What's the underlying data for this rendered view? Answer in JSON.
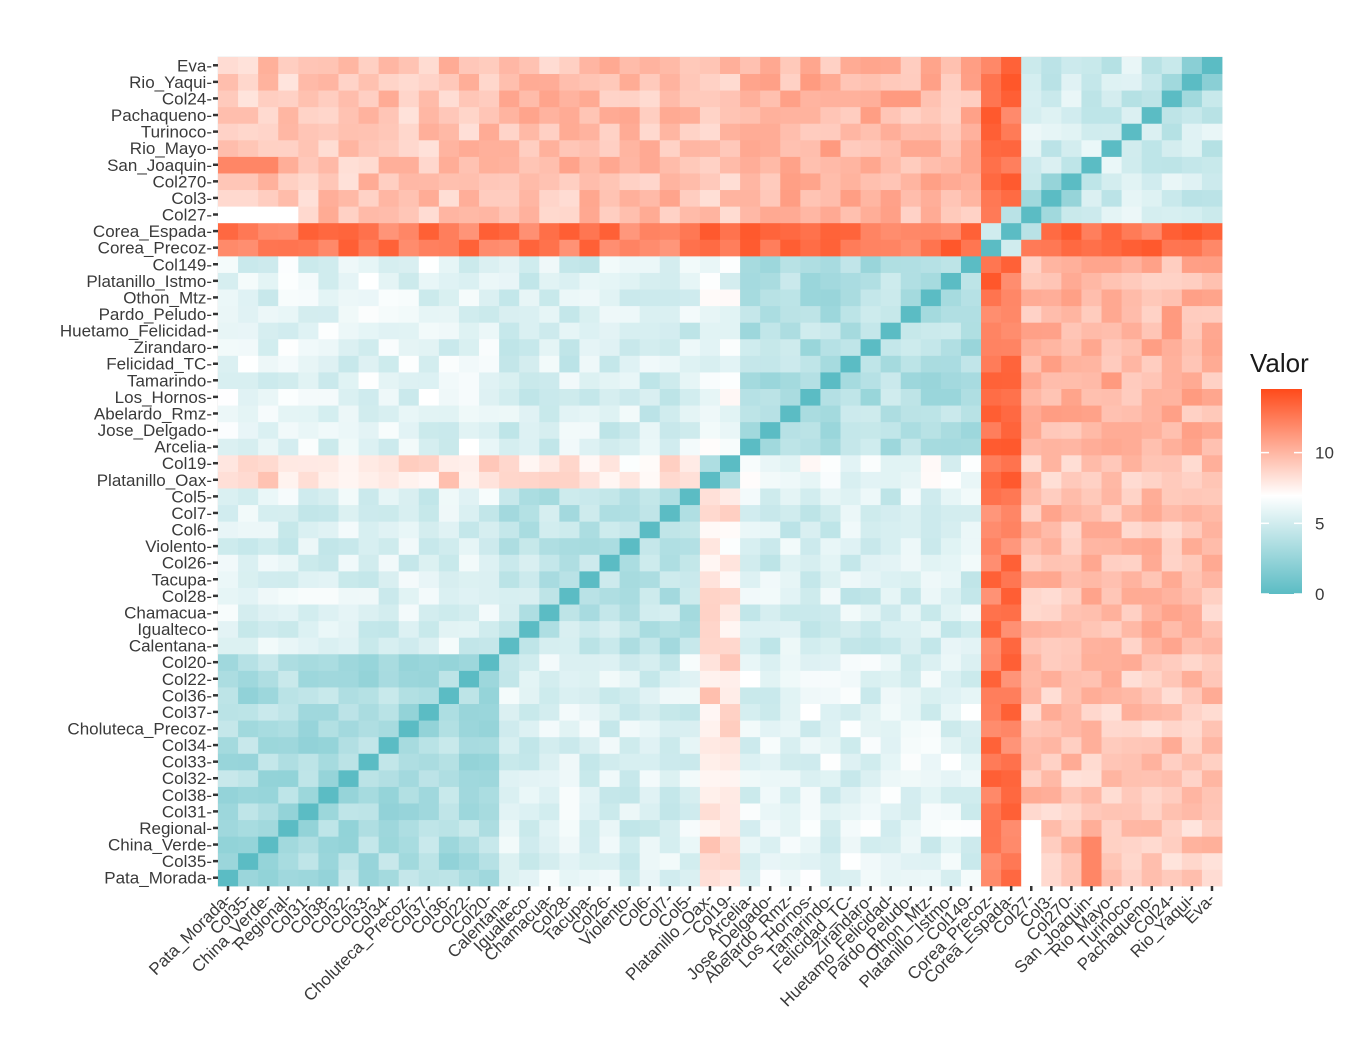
{
  "chart_data": {
    "type": "heatmap",
    "title": "",
    "xlabel": "",
    "ylabel": "",
    "legend_title": "Valor",
    "legend_position": "right",
    "color_scale": {
      "low": "#5bbcc4",
      "mid": "#ffffff",
      "high": "#ff4a1a",
      "min": 0,
      "mid_value": 7,
      "max": 14.5
    },
    "legend_ticks": [
      0,
      5,
      10
    ],
    "order": [
      "Pata_Morada",
      "Col35",
      "China_Verde",
      "Regional",
      "Col31",
      "Col38",
      "Col32",
      "Col33",
      "Col34",
      "Choluteca_Precoz",
      "Col37",
      "Col36",
      "Col22",
      "Col20",
      "Calentana",
      "Igualteco",
      "Chamacua",
      "Col28",
      "Tacupa",
      "Col26",
      "Violento",
      "Col6",
      "Col7",
      "Col5",
      "Platanillo_Oax",
      "Col19",
      "Arcelia",
      "Jose_Delgado",
      "Abelardo_Rmz",
      "Los_Hornos",
      "Tamarindo",
      "Felicidad_TC",
      "Zirandaro",
      "Huetamo_Felicidad",
      "Pardo_Peludo",
      "Othon_Mtz",
      "Platanillo_Istmo",
      "Col149",
      "Corea_Precoz",
      "Corea_Espada",
      "Col27",
      "Col3",
      "Col270",
      "San_Joaquin",
      "Rio_Mayo",
      "Turinoco",
      "Pachaqueno",
      "Col24",
      "Rio_Yaqui",
      "Eva"
    ],
    "groups": {
      "A": [
        "Pata_Morada",
        "Col35",
        "China_Verde",
        "Regional",
        "Col31",
        "Col38",
        "Col32",
        "Col33",
        "Col34",
        "Choluteca_Precoz",
        "Col37",
        "Col36",
        "Col22",
        "Col20"
      ],
      "B": [
        "Calentana",
        "Igualteco",
        "Chamacua",
        "Col28",
        "Tacupa",
        "Col26",
        "Violento",
        "Col6",
        "Col7",
        "Col5"
      ],
      "C": [
        "Platanillo_Oax",
        "Col19"
      ],
      "D": [
        "Arcelia",
        "Jose_Delgado",
        "Abelardo_Rmz",
        "Los_Hornos",
        "Tamarindo",
        "Felicidad_TC",
        "Zirandaro",
        "Huetamo_Felicidad",
        "Pardo_Peludo",
        "Othon_Mtz",
        "Platanillo_Istmo",
        "Col149"
      ],
      "E": [
        "Corea_Precoz",
        "Corea_Espada"
      ],
      "F": [
        "Col27",
        "Col3",
        "Col270",
        "San_Joaquin",
        "Rio_Mayo",
        "Turinoco",
        "Pachaqueno",
        "Col24",
        "Rio_Yaqui",
        "Eva"
      ]
    },
    "group_block_values": {
      "A": {
        "A": 3.5,
        "B": 5.5,
        "C": 8.5,
        "D": 5.8,
        "E": 12.5,
        "F": 9.3
      },
      "B": {
        "B": 4.2,
        "C": 7.8,
        "D": 5.3,
        "E": 12.5,
        "F": 9.6
      },
      "C": {
        "C": 3.5,
        "D": 6.2,
        "E": 13.2,
        "F": 9.3
      },
      "D": {
        "D": 3.8,
        "E": 12.8,
        "F": 10.0
      },
      "E": {
        "E": 6.5,
        "F": 13.0
      },
      "F": {
        "F": 5.0
      }
    },
    "special_values": {
      "Col27|Pata_Morada": 7.0,
      "Col27|Col35": 7.0,
      "Col27|China_Verde": 7.0,
      "Col27|Regional": 7.0,
      "Col27|Corea_Espada": 4.0,
      "Col27|Corea_Precoz": 12.5,
      "Corea_Precoz|Corea_Espada": 5.0,
      "San_Joaquin|Pata_Morada": 12.0,
      "San_Joaquin|Col35": 12.0,
      "San_Joaquin|China_Verde": 12.0,
      "Eva|Rio_Yaqui": 2.0,
      "Rio_Yaqui|Col24": 3.0,
      "Col3|Col270": 2.5,
      "Col27|Col3": 3.0
    },
    "diagonal_value": 0
  }
}
